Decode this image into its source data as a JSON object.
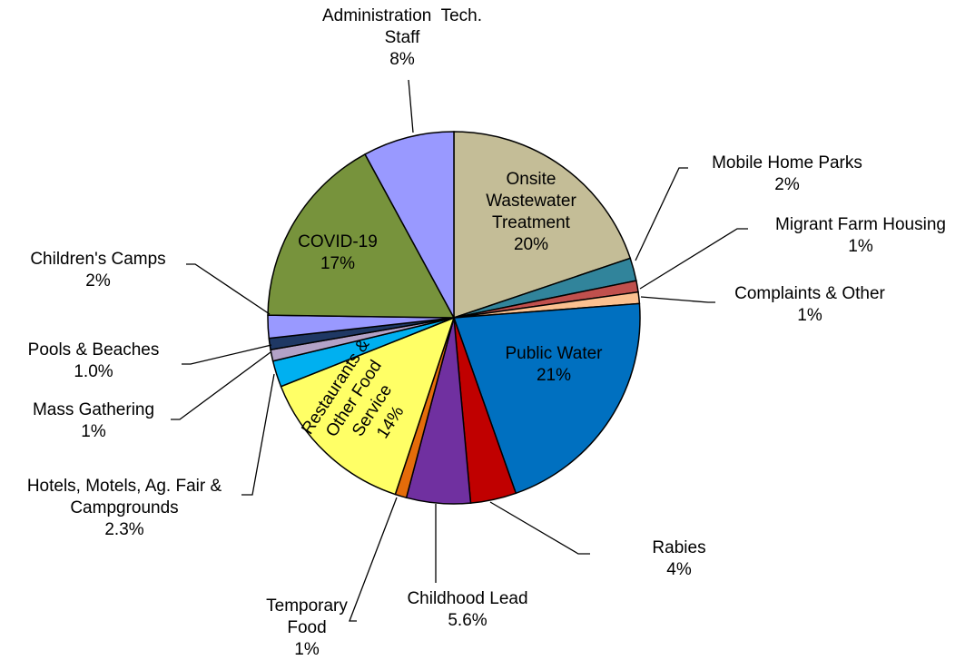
{
  "chart_data": {
    "type": "pie",
    "categories": [
      "Onsite Wastewater Treatment",
      "Mobile Home Parks",
      "Migrant Farm Housing",
      "Complaints & Other",
      "Public Water",
      "Rabies",
      "Childhood Lead",
      "Temporary Food",
      "Restaurants & Other Food Service",
      "Hotels, Motels, Ag. Fair & Campgrounds",
      "Mass Gathering",
      "Pools & Beaches",
      "Children's Camps",
      "COVID-19",
      "Administration  Tech. Staff"
    ],
    "values": [
      20,
      2,
      1,
      1,
      21,
      4,
      5.6,
      1,
      14,
      2.3,
      1,
      1.0,
      2,
      17,
      8
    ],
    "value_labels": [
      "20%",
      "2%",
      "1%",
      "1%",
      "21%",
      "4%",
      "5.6%",
      "1%",
      "14%",
      "2.3%",
      "1%",
      "1.0%",
      "2%",
      "17%",
      "8%"
    ],
    "colors": [
      "#c4bd97",
      "#31849b",
      "#c0504d",
      "#fac090",
      "#0070c0",
      "#c00000",
      "#7030a0",
      "#e46c0a",
      "#ffff66",
      "#00b0f0",
      "#b3a2c7",
      "#1f3864",
      "#9999ff",
      "#77933c",
      "#9999ff"
    ]
  }
}
